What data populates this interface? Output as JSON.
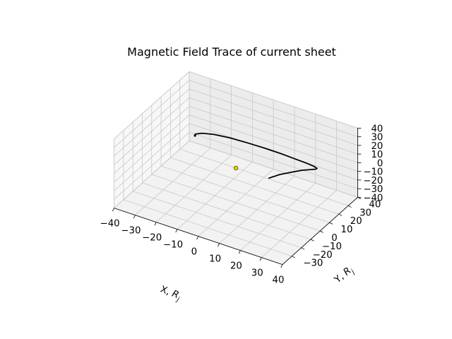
{
  "chart_data": {
    "type": "line",
    "projection": "3d",
    "title": "Magnetic Field Trace of current sheet",
    "xlabel": "X, R_j",
    "ylabel": "Y, R_j",
    "zlabel": "",
    "xlim": [
      -40,
      40
    ],
    "ylim": [
      -40,
      40
    ],
    "zlim": [
      -40,
      40
    ],
    "xticks": [
      "−40",
      "−30",
      "−20",
      "−10",
      "0",
      "10",
      "20",
      "30",
      "40"
    ],
    "yticks": [
      "−30",
      "−20",
      "−10",
      "0",
      "10",
      "20",
      "30",
      "40"
    ],
    "zticks": [
      "−40",
      "−30",
      "−20",
      "−10",
      "0",
      "10",
      "20",
      "30",
      "40"
    ],
    "grid": true,
    "series": [
      {
        "color": "#000000",
        "x": [
          22.0,
          24.0,
          26.5,
          28.5,
          29.8,
          29.8,
          28.5,
          25.5,
          21.0,
          15.0,
          8.0,
          0.5,
          -7.0,
          -14.0,
          -19.5,
          -23.0,
          -24.0,
          -23.0
        ],
        "y": [
          -14.0,
          -7.0,
          0.0,
          7.0,
          13.0,
          18.0,
          22.5,
          26.0,
          28.5,
          30.0,
          30.5,
          29.8,
          27.8,
          24.8,
          20.5,
          15.5,
          10.5,
          8.0
        ],
        "z": [
          20.0,
          19.0,
          17.0,
          14.0,
          10.0,
          5.5,
          1.0,
          -2.5,
          -5.0,
          -6.5,
          -6.5,
          -5.5,
          -3.5,
          -0.5,
          3.0,
          6.5,
          9.5,
          11.0
        ]
      }
    ],
    "points": [
      {
        "x": 0,
        "y": 0,
        "z": 0,
        "color": "#d4d400",
        "edge": "#5a5a00"
      }
    ]
  }
}
